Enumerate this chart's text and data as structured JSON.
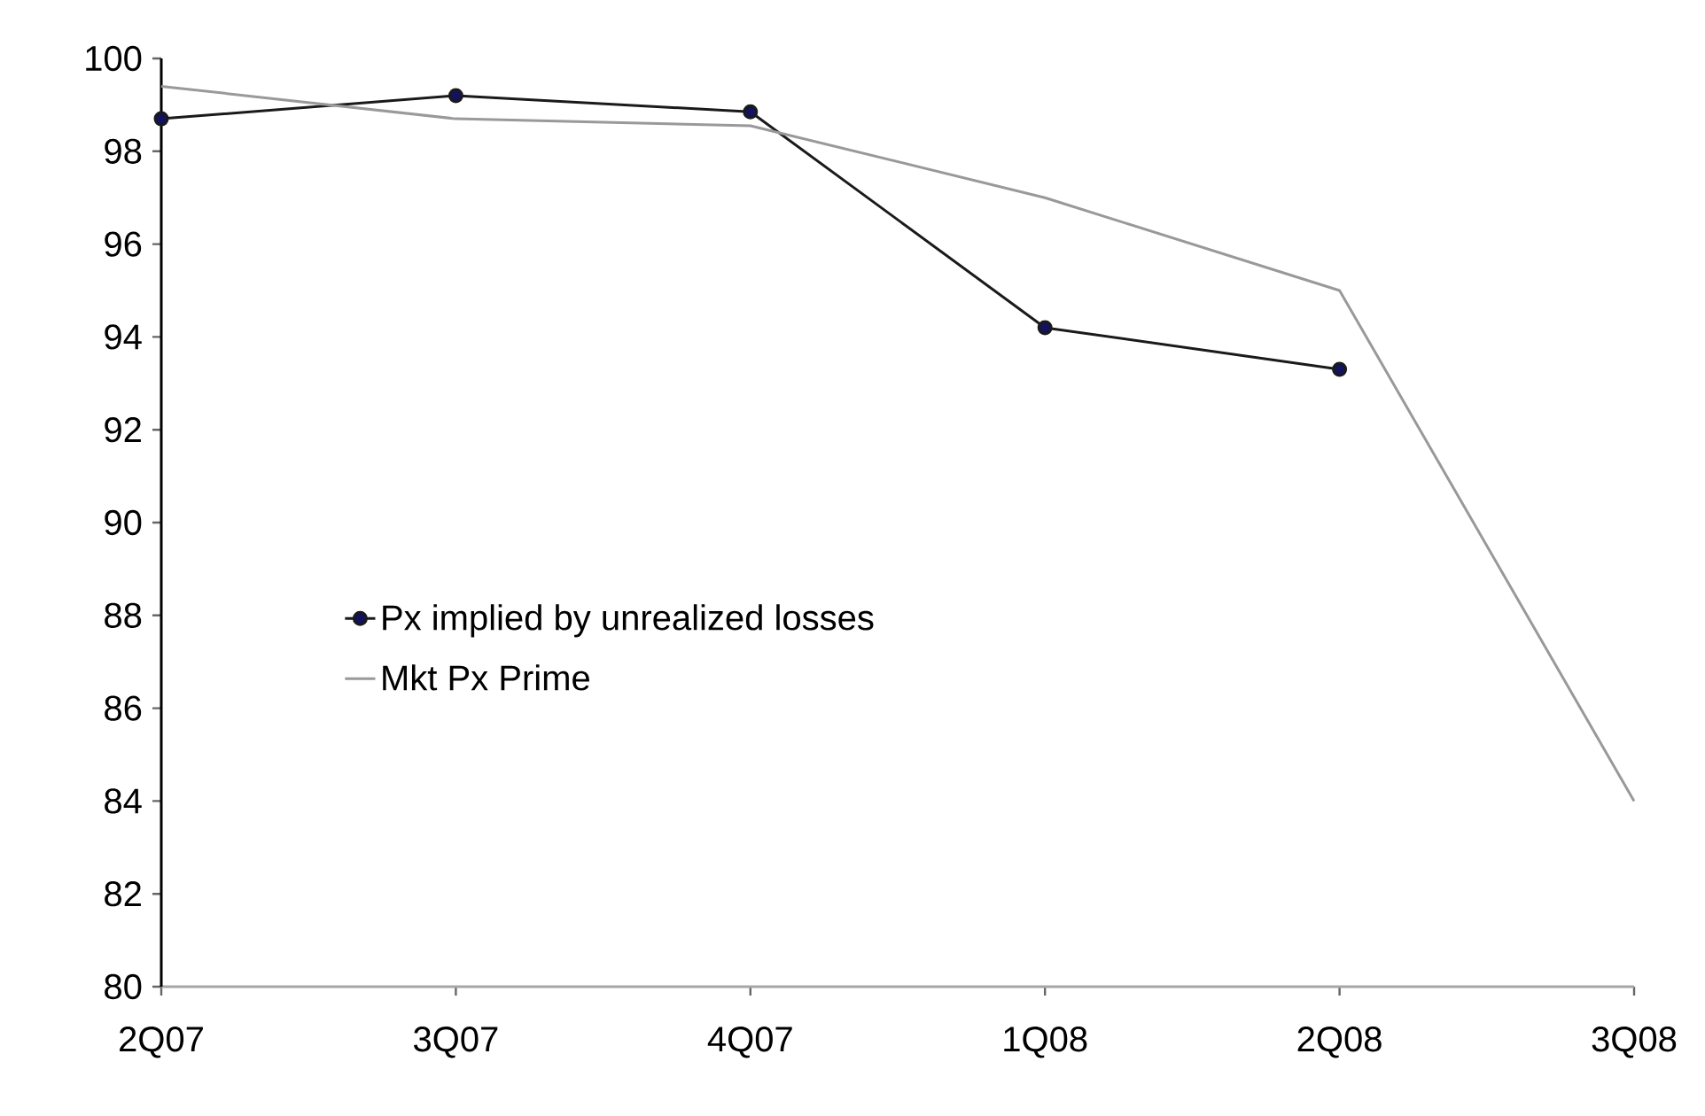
{
  "chart_data": {
    "type": "line",
    "categories": [
      "2Q07",
      "3Q07",
      "4Q07",
      "1Q08",
      "2Q08",
      "3Q08"
    ],
    "series": [
      {
        "name": "Px implied by unrealized losses",
        "color": "#1a1a1a",
        "marker": "circle",
        "values": [
          98.7,
          99.2,
          98.85,
          94.2,
          93.3,
          null
        ]
      },
      {
        "name": "Mkt Px Prime",
        "color": "#999999",
        "marker": "none",
        "values": [
          99.4,
          98.7,
          98.55,
          97.0,
          95.0,
          84.0
        ]
      }
    ],
    "ylim": [
      80,
      100
    ],
    "yticks": [
      80,
      82,
      84,
      86,
      88,
      90,
      92,
      94,
      96,
      98,
      100
    ],
    "legend": "left",
    "grid": false
  }
}
